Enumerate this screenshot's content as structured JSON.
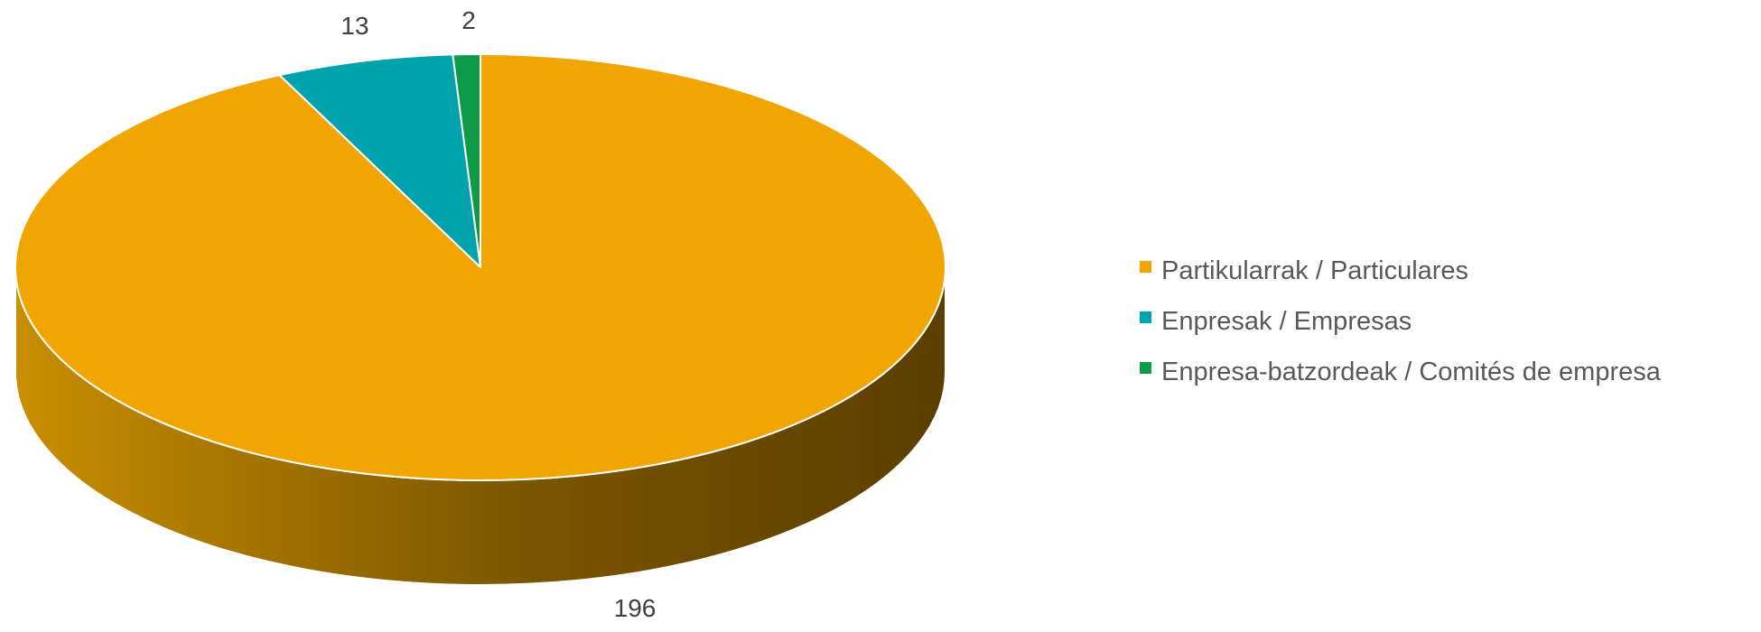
{
  "chart_data": {
    "type": "pie",
    "style": "3d",
    "title": "",
    "categories": [
      "Partikularrak / Particulares",
      "Enpresak / Empresas",
      "Enpresa-batzordeak / Comités de empresa"
    ],
    "values": [
      196,
      13,
      2
    ],
    "data_labels": [
      "196",
      "13",
      "2"
    ],
    "colors": [
      "#F0A500",
      "#00A2AC",
      "#0E9A47"
    ],
    "legend_position": "right",
    "start_angle": "top, clockwise"
  }
}
